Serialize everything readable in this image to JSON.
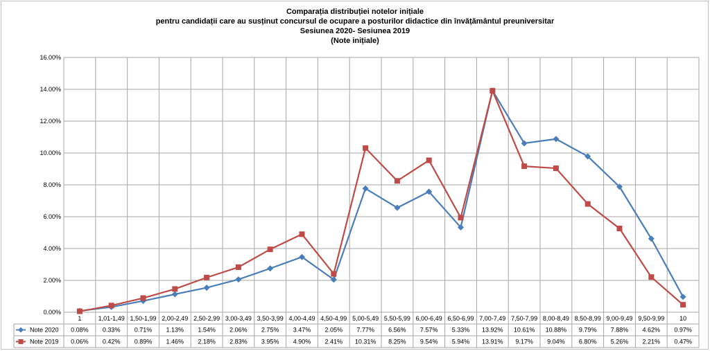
{
  "chart_data": {
    "type": "line",
    "title_lines": [
      "Comparația distribuției notelor inițiale",
      "pentru candidații care au susținut concursul de ocupare a posturilor didactice din învățământul preuniversitar",
      "Sesiunea 2020- Sesiunea 2019",
      "(Note inițiale)"
    ],
    "categories": [
      "1",
      "1,01-1,49",
      "1,50-1,99",
      "2,00-2,49",
      "2,50-2,99",
      "3,00-3,49",
      "3,50-3,99",
      "4,00-4,49",
      "4,50-4,99",
      "5,00-5,49",
      "5,50-5,99",
      "6,00-6,49",
      "6,50-6,99",
      "7,00-7,49",
      "7,50-7,99",
      "8,00-8,49",
      "8,50-8,99",
      "9,00-9,49",
      "9,50-9,99",
      "10"
    ],
    "y_ticks": [
      "0.00%",
      "2.00%",
      "4.00%",
      "6.00%",
      "8.00%",
      "10.00%",
      "12.00%",
      "14.00%",
      "16.00%"
    ],
    "ylim": [
      0,
      16
    ],
    "grid": true,
    "legend": "data-table-left",
    "series": [
      {
        "name": "Note 2020",
        "color": "#4a7ebb",
        "marker": "diamond",
        "values": [
          0.08,
          0.33,
          0.71,
          1.13,
          1.54,
          2.06,
          2.75,
          3.47,
          2.05,
          7.77,
          6.56,
          7.57,
          5.33,
          13.92,
          10.61,
          10.88,
          9.79,
          7.88,
          4.62,
          0.97
        ],
        "labels": [
          "0.08%",
          "0.33%",
          "0.71%",
          "1.13%",
          "1.54%",
          "2.06%",
          "2.75%",
          "3.47%",
          "2.05%",
          "7.77%",
          "6.56%",
          "7.57%",
          "5.33%",
          "13.92%",
          "10.61%",
          "10.88%",
          "9.79%",
          "7.88%",
          "4.62%",
          "0.97%"
        ]
      },
      {
        "name": "Note 2019",
        "color": "#be4b48",
        "marker": "square",
        "values": [
          0.06,
          0.42,
          0.89,
          1.46,
          2.18,
          2.83,
          3.95,
          4.9,
          2.41,
          10.31,
          8.25,
          9.54,
          5.94,
          13.91,
          9.17,
          9.04,
          6.8,
          5.26,
          2.21,
          0.47
        ],
        "labels": [
          "0.06%",
          "0.42%",
          "0.89%",
          "1.46%",
          "2.18%",
          "2.83%",
          "3.95%",
          "4.90%",
          "2.41%",
          "10.31%",
          "8.25%",
          "9.54%",
          "5.94%",
          "13.91%",
          "9.17%",
          "9.04%",
          "6.80%",
          "5.26%",
          "2.21%",
          "0.47%"
        ]
      }
    ]
  }
}
